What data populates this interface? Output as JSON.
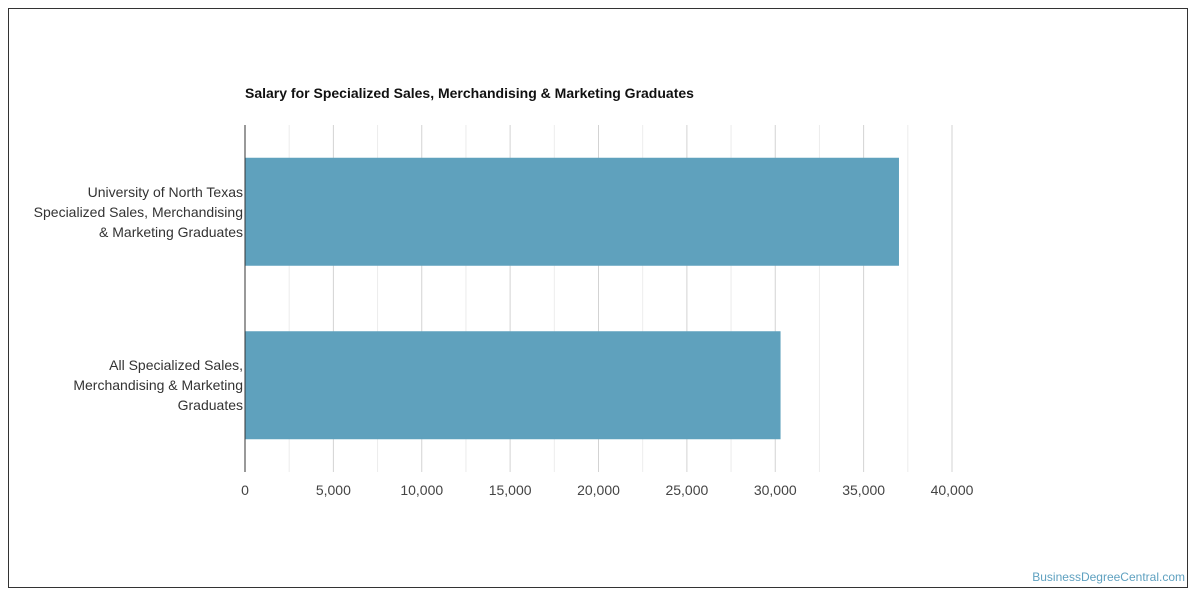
{
  "chart_data": {
    "type": "bar",
    "orientation": "horizontal",
    "title": "Salary for Specialized Sales, Merchandising & Marketing Graduates",
    "categories": [
      "University of North Texas Specialized Sales, Merchandising & Marketing Graduates",
      "All Specialized Sales, Merchandising & Marketing Graduates"
    ],
    "category_label_lines": [
      [
        "University of North Texas",
        "Specialized Sales, Merchandising",
        "& Marketing Graduates"
      ],
      [
        "All Specialized Sales,",
        "Merchandising & Marketing",
        "Graduates"
      ]
    ],
    "values": [
      37000,
      30300
    ],
    "xlim": [
      0,
      40000
    ],
    "xticks": [
      0,
      5000,
      10000,
      15000,
      20000,
      25000,
      30000,
      35000,
      40000
    ],
    "xtick_labels": [
      "0",
      "5,000",
      "10,000",
      "15,000",
      "20,000",
      "25,000",
      "30,000",
      "35,000",
      "40,000"
    ],
    "xlabel": "",
    "ylabel": "",
    "grid": true,
    "bar_color": "#5fa1bd",
    "grid_color": "#d3d3d3"
  },
  "watermark": "BusinessDegreeCentral.com"
}
